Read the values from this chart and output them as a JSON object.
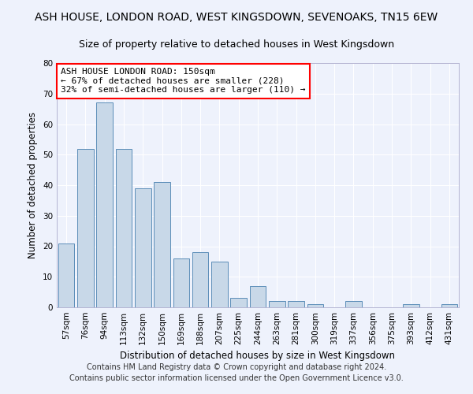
{
  "title": "ASH HOUSE, LONDON ROAD, WEST KINGSDOWN, SEVENOAKS, TN15 6EW",
  "subtitle": "Size of property relative to detached houses in West Kingsdown",
  "xlabel": "Distribution of detached houses by size in West Kingsdown",
  "ylabel": "Number of detached properties",
  "categories": [
    "57sqm",
    "76sqm",
    "94sqm",
    "113sqm",
    "132sqm",
    "150sqm",
    "169sqm",
    "188sqm",
    "207sqm",
    "225sqm",
    "244sqm",
    "263sqm",
    "281sqm",
    "300sqm",
    "319sqm",
    "337sqm",
    "356sqm",
    "375sqm",
    "393sqm",
    "412sqm",
    "431sqm"
  ],
  "values": [
    21,
    52,
    67,
    52,
    39,
    41,
    16,
    18,
    15,
    3,
    7,
    2,
    2,
    1,
    0,
    2,
    0,
    0,
    1,
    0,
    1
  ],
  "highlight_index": 5,
  "bar_color": "#c8d8e8",
  "bar_edge_color": "#5b8db8",
  "annotation_box_text": "ASH HOUSE LONDON ROAD: 150sqm\n← 67% of detached houses are smaller (228)\n32% of semi-detached houses are larger (110) →",
  "annotation_box_color": "white",
  "annotation_box_edge_color": "red",
  "ylim": [
    0,
    80
  ],
  "yticks": [
    0,
    10,
    20,
    30,
    40,
    50,
    60,
    70,
    80
  ],
  "footer_line1": "Contains HM Land Registry data © Crown copyright and database right 2024.",
  "footer_line2": "Contains public sector information licensed under the Open Government Licence v3.0.",
  "background_color": "#eef2fc",
  "grid_color": "white",
  "title_fontsize": 10,
  "subtitle_fontsize": 9,
  "label_fontsize": 8.5,
  "tick_fontsize": 7.5,
  "annotation_fontsize": 8,
  "footer_fontsize": 7
}
